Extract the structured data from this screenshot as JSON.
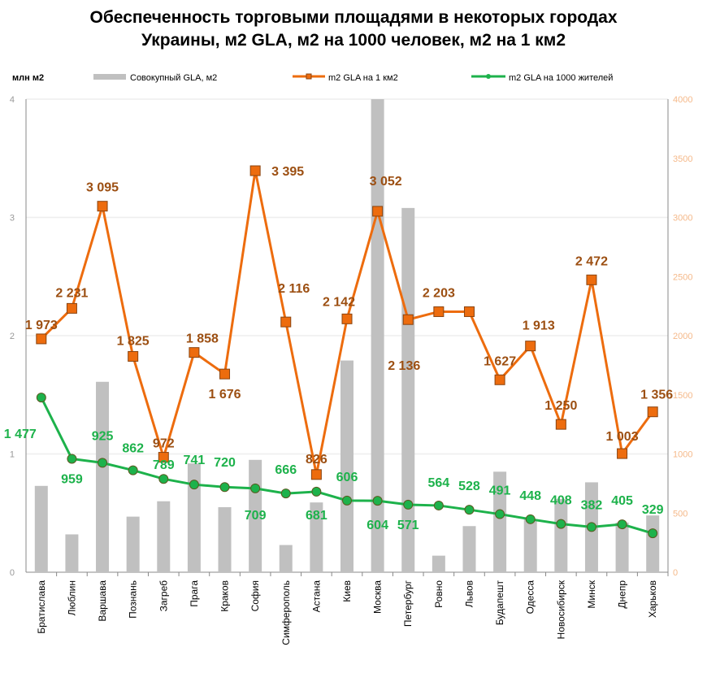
{
  "chart_data": {
    "type": "bar+line",
    "title": "Обеспеченность торговыми площадями в некоторых городах Украины, м2 GLA, м2 на 1000 человек, м2 на 1 км2",
    "title_lines": [
      "Обеспеченность торговыми площадями в некоторых городах",
      "Украины, м2 GLA, м2 на 1000 человек, м2 на 1 км2"
    ],
    "ylabel_left": "млн м2",
    "ylim_left": [
      0,
      4
    ],
    "yticks_left": [
      "0",
      "1",
      "2",
      "3",
      "4"
    ],
    "ylim_right": [
      0,
      4000
    ],
    "yticks_right": [
      "0",
      "500",
      "1000",
      "1500",
      "2000",
      "2500",
      "3000",
      "3500",
      "4000"
    ],
    "grid": true,
    "legend_position": "top",
    "categories": [
      "Братислава",
      "Люблин",
      "Варшава",
      "Познань",
      "Загреб",
      "Прага",
      "Краков",
      "София",
      "Симферополь",
      "Астана",
      "Киев",
      "Москва",
      "Петербург",
      "Ровно",
      "Львов",
      "Будапешт",
      "Одесса",
      "Новосибирск",
      "Минск",
      "Днепр",
      "Харьков"
    ],
    "series": [
      {
        "name": "Совокупный GLA, м2",
        "type": "bar",
        "axis": "left",
        "color": "#c0c0c0",
        "values": [
          0.73,
          0.32,
          1.61,
          0.47,
          0.6,
          0.92,
          0.55,
          0.95,
          0.23,
          0.59,
          1.79,
          4.0,
          3.08,
          0.14,
          0.39,
          0.85,
          0.45,
          0.62,
          0.76,
          0.42,
          0.48
        ]
      },
      {
        "name": "m2 GLA на 1 км2",
        "type": "line",
        "axis": "right",
        "color": "#ed6c0e",
        "label_color": "#9c4f12",
        "values": [
          1973,
          2231,
          3095,
          1825,
          972,
          1858,
          1676,
          3395,
          2116,
          826,
          2142,
          3052,
          2136,
          2203,
          2203,
          1627,
          1913,
          1250,
          2472,
          1003,
          1356
        ],
        "labels": [
          "1 973",
          "2 231",
          "3 095",
          "1 825",
          "972",
          "1 858",
          "1 676",
          "3 395",
          "2 116",
          "826",
          "2 142",
          "3 052",
          "2 136",
          "2 203",
          "",
          "1 627",
          "1 913",
          "1 250",
          "2 472",
          "1 003",
          "1 356"
        ]
      },
      {
        "name": "m2 GLA на 1000 жителей",
        "type": "line",
        "axis": "right",
        "color": "#1db24b",
        "values": [
          1477,
          959,
          925,
          862,
          789,
          741,
          720,
          709,
          666,
          681,
          606,
          604,
          571,
          564,
          528,
          491,
          448,
          408,
          382,
          405,
          329
        ],
        "labels": [
          "1 477",
          "959",
          "925",
          "862",
          "789",
          "741",
          "720",
          "709",
          "666",
          "681",
          "606",
          "604",
          "571",
          "564",
          "528",
          "491",
          "448",
          "408",
          "382",
          "405",
          "329"
        ]
      }
    ]
  }
}
